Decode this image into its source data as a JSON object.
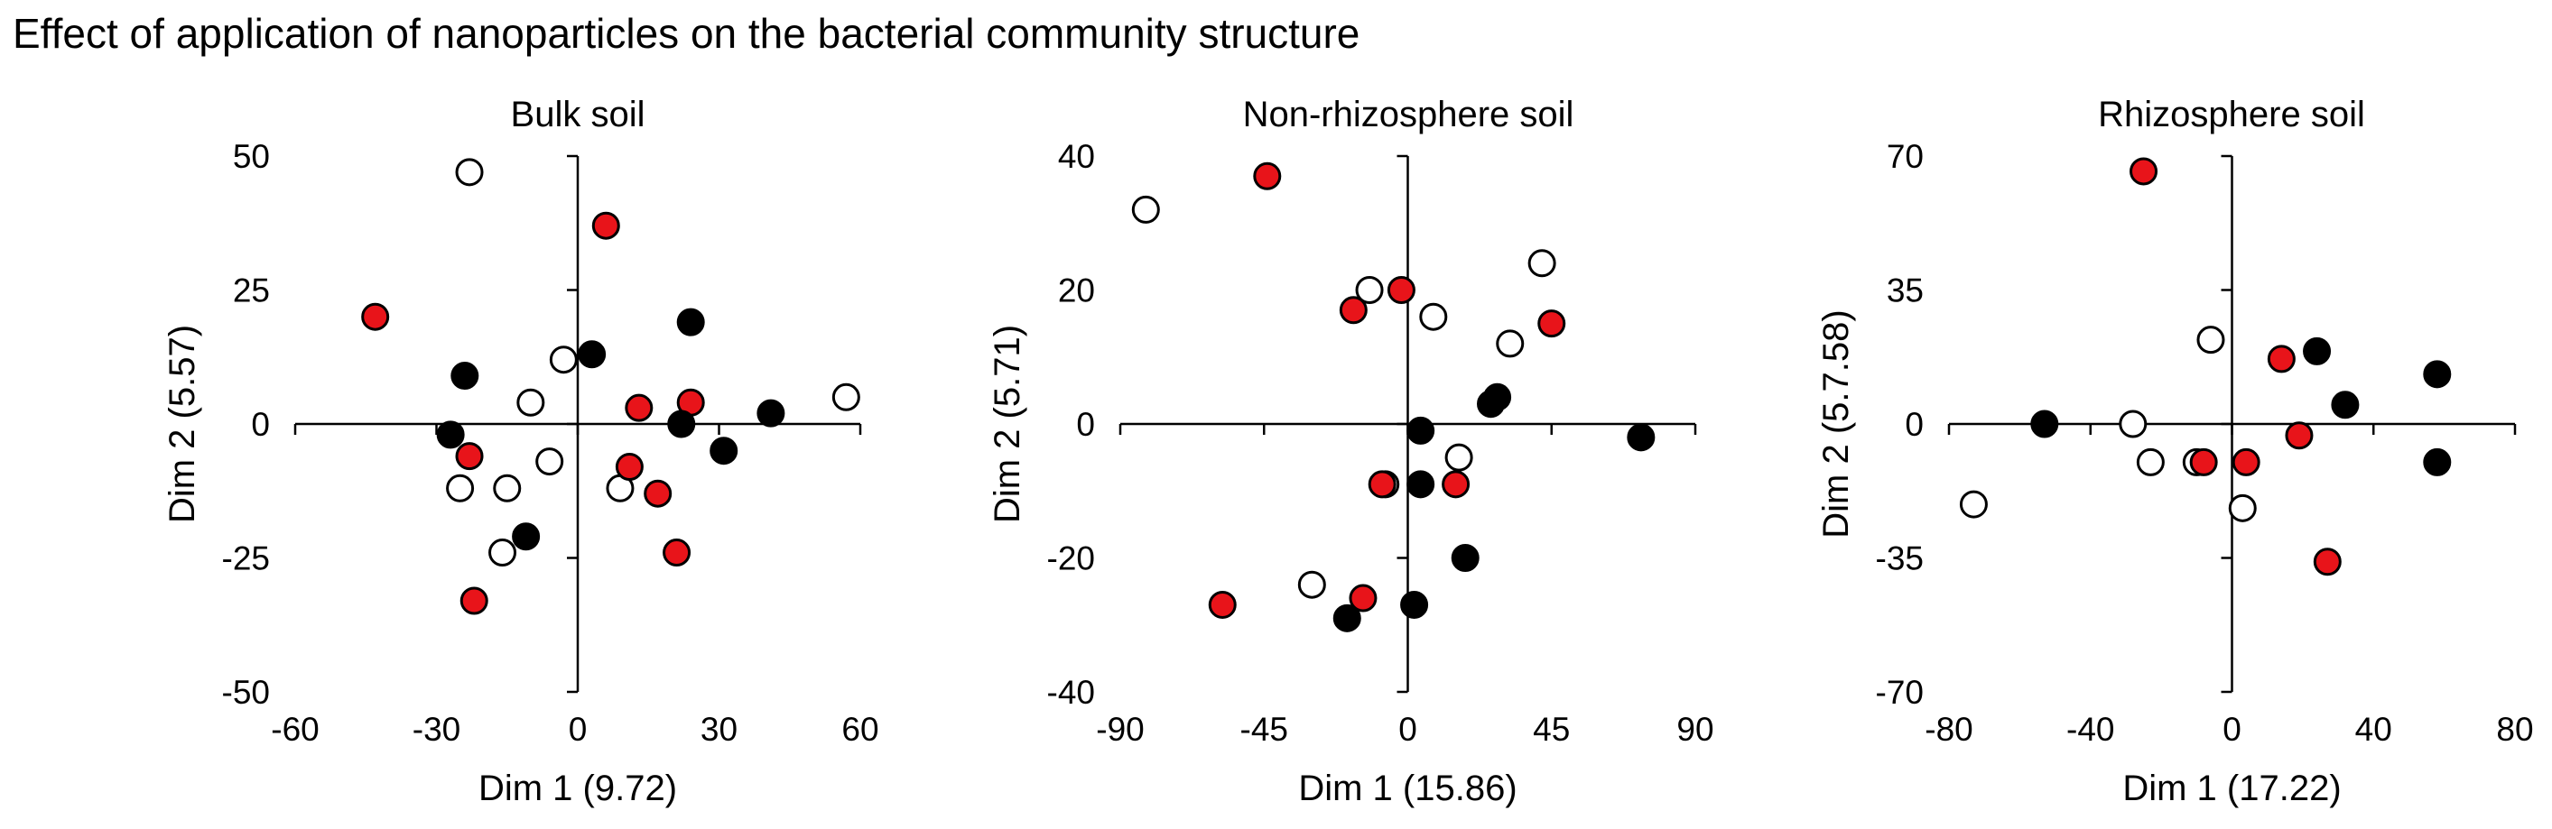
{
  "title": "Effect of application of nanoparticles  on the bacterial community structure",
  "colors": {
    "treated": "#e8141a",
    "filled": "#000000",
    "open": "#ffffff",
    "stroke": "#000000"
  },
  "chart_data": [
    {
      "type": "scatter",
      "title": "Bulk soil",
      "xlabel": "Dim 1 (9.72)",
      "ylabel": "Dim 2 (5.57)",
      "xlim": [
        -60,
        60
      ],
      "ylim": [
        -50,
        50
      ],
      "xticks": [
        -60,
        -30,
        0,
        30,
        60
      ],
      "yticks": [
        -50,
        -25,
        0,
        25,
        50
      ],
      "points": [
        {
          "x": -23,
          "y": 47,
          "fill": "open"
        },
        {
          "x": -3,
          "y": 12,
          "fill": "open"
        },
        {
          "x": -10,
          "y": 4,
          "fill": "open"
        },
        {
          "x": -6,
          "y": -7,
          "fill": "open"
        },
        {
          "x": -25,
          "y": -12,
          "fill": "open"
        },
        {
          "x": -15,
          "y": -12,
          "fill": "open"
        },
        {
          "x": 9,
          "y": -12,
          "fill": "open"
        },
        {
          "x": -16,
          "y": -24,
          "fill": "open"
        },
        {
          "x": 57,
          "y": 5,
          "fill": "open"
        },
        {
          "x": 6,
          "y": 37,
          "fill": "red"
        },
        {
          "x": -43,
          "y": 20,
          "fill": "red"
        },
        {
          "x": 13,
          "y": 3,
          "fill": "red"
        },
        {
          "x": 24,
          "y": 4,
          "fill": "red"
        },
        {
          "x": -23,
          "y": -6,
          "fill": "red"
        },
        {
          "x": 11,
          "y": -8,
          "fill": "red"
        },
        {
          "x": 17,
          "y": -13,
          "fill": "red"
        },
        {
          "x": 21,
          "y": -24,
          "fill": "red"
        },
        {
          "x": -22,
          "y": -33,
          "fill": "red"
        },
        {
          "x": 24,
          "y": 19,
          "fill": "black"
        },
        {
          "x": -24,
          "y": 9,
          "fill": "black"
        },
        {
          "x": 3,
          "y": 13,
          "fill": "black"
        },
        {
          "x": 41,
          "y": 2,
          "fill": "black"
        },
        {
          "x": 22,
          "y": 0,
          "fill": "black"
        },
        {
          "x": -27,
          "y": -2,
          "fill": "black"
        },
        {
          "x": 31,
          "y": -5,
          "fill": "black"
        },
        {
          "x": -11,
          "y": -21,
          "fill": "black"
        }
      ]
    },
    {
      "type": "scatter",
      "title": "Non-rhizosphere soil",
      "xlabel": "Dim 1 (15.86)",
      "ylabel": "Dim 2 (5.71)",
      "xlim": [
        -90,
        90
      ],
      "ylim": [
        -40,
        40
      ],
      "xticks": [
        -90,
        -45,
        0,
        45,
        90
      ],
      "yticks": [
        -40,
        -20,
        0,
        20,
        40
      ],
      "points": [
        {
          "x": -82,
          "y": 32,
          "fill": "open"
        },
        {
          "x": 42,
          "y": 24,
          "fill": "open"
        },
        {
          "x": -12,
          "y": 20,
          "fill": "open"
        },
        {
          "x": 8,
          "y": 16,
          "fill": "open"
        },
        {
          "x": 32,
          "y": 12,
          "fill": "open"
        },
        {
          "x": 16,
          "y": -5,
          "fill": "open"
        },
        {
          "x": -7,
          "y": -9,
          "fill": "open"
        },
        {
          "x": -30,
          "y": -24,
          "fill": "open"
        },
        {
          "x": -44,
          "y": 37,
          "fill": "red"
        },
        {
          "x": -2,
          "y": 20,
          "fill": "red"
        },
        {
          "x": -17,
          "y": 17,
          "fill": "red"
        },
        {
          "x": 45,
          "y": 15,
          "fill": "red"
        },
        {
          "x": -8,
          "y": -9,
          "fill": "red"
        },
        {
          "x": 15,
          "y": -9,
          "fill": "red"
        },
        {
          "x": -14,
          "y": -26,
          "fill": "red"
        },
        {
          "x": -58,
          "y": -27,
          "fill": "red"
        },
        {
          "x": 26,
          "y": 3,
          "fill": "black"
        },
        {
          "x": 28,
          "y": 4,
          "fill": "black"
        },
        {
          "x": 4,
          "y": -1,
          "fill": "black"
        },
        {
          "x": 73,
          "y": -2,
          "fill": "black"
        },
        {
          "x": 4,
          "y": -9,
          "fill": "black"
        },
        {
          "x": 18,
          "y": -20,
          "fill": "black"
        },
        {
          "x": 2,
          "y": -27,
          "fill": "black"
        },
        {
          "x": -19,
          "y": -29,
          "fill": "black"
        }
      ]
    },
    {
      "type": "scatter",
      "title": "Rhizosphere soil",
      "xlabel": "Dim 1 (17.22)",
      "ylabel": "Dim 2 (5.7.58)",
      "xlim": [
        -80,
        80
      ],
      "ylim": [
        -70,
        70
      ],
      "xticks": [
        -80,
        -40,
        0,
        40,
        80
      ],
      "yticks": [
        -70,
        -35,
        0,
        35,
        70
      ],
      "points": [
        {
          "x": -6,
          "y": 22,
          "fill": "open"
        },
        {
          "x": -28,
          "y": 0,
          "fill": "open"
        },
        {
          "x": -73,
          "y": -21,
          "fill": "open"
        },
        {
          "x": -23,
          "y": -10,
          "fill": "open"
        },
        {
          "x": -10,
          "y": -10,
          "fill": "open"
        },
        {
          "x": 3,
          "y": -22,
          "fill": "open"
        },
        {
          "x": -25,
          "y": 66,
          "fill": "red"
        },
        {
          "x": 14,
          "y": 17,
          "fill": "red"
        },
        {
          "x": 19,
          "y": -3,
          "fill": "red"
        },
        {
          "x": 4,
          "y": -10,
          "fill": "red"
        },
        {
          "x": -8,
          "y": -10,
          "fill": "red"
        },
        {
          "x": 27,
          "y": -36,
          "fill": "red"
        },
        {
          "x": 24,
          "y": 19,
          "fill": "black"
        },
        {
          "x": 58,
          "y": 13,
          "fill": "black"
        },
        {
          "x": 32,
          "y": 5,
          "fill": "black"
        },
        {
          "x": -53,
          "y": 0,
          "fill": "black"
        },
        {
          "x": 58,
          "y": -10,
          "fill": "black"
        }
      ]
    }
  ]
}
